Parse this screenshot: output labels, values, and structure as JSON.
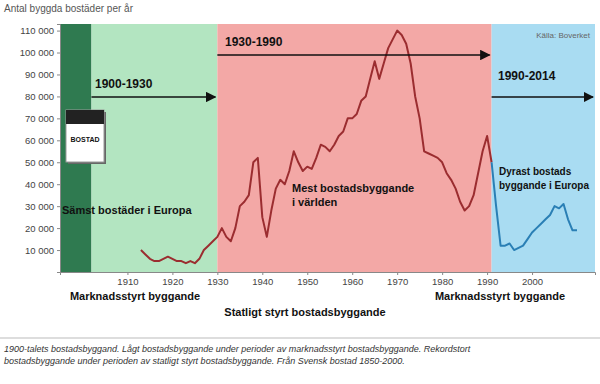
{
  "chart_data": {
    "type": "line",
    "title": "Antal byggda bostäder per år",
    "x": [
      1913,
      1914,
      1915,
      1916,
      1917,
      1918,
      1919,
      1920,
      1921,
      1922,
      1923,
      1924,
      1925,
      1926,
      1927,
      1928,
      1929,
      1930,
      1931,
      1932,
      1933,
      1934,
      1935,
      1936,
      1937,
      1938,
      1939,
      1940,
      1941,
      1942,
      1943,
      1944,
      1945,
      1946,
      1947,
      1948,
      1949,
      1950,
      1951,
      1952,
      1953,
      1954,
      1955,
      1956,
      1957,
      1958,
      1959,
      1960,
      1961,
      1962,
      1963,
      1964,
      1965,
      1966,
      1967,
      1968,
      1969,
      1970,
      1971,
      1972,
      1973,
      1974,
      1975,
      1976,
      1977,
      1978,
      1979,
      1980,
      1981,
      1982,
      1983,
      1984,
      1985,
      1986,
      1987,
      1988,
      1989,
      1990,
      1991,
      1992,
      1993,
      1994,
      1995,
      1996,
      1997,
      1998,
      1999,
      2000,
      2001,
      2002,
      2003,
      2004,
      2005,
      2006,
      2007,
      2008,
      2009,
      2010
    ],
    "series": [
      {
        "color": "#9b2d30",
        "values": [
          10000,
          8000,
          6000,
          5000,
          5000,
          6000,
          7000,
          6000,
          5000,
          5000,
          4000,
          5000,
          4000,
          6000,
          10000,
          12000,
          14000,
          16000,
          20000,
          16000,
          14000,
          20000,
          30000,
          32000,
          35000,
          50000,
          52000,
          25000,
          16000,
          28000,
          38000,
          42000,
          40000,
          46000,
          55000,
          50000,
          46000,
          48000,
          47000,
          52000,
          58000,
          57000,
          55000,
          58000,
          62000,
          64000,
          70000,
          70000,
          72000,
          78000,
          80000,
          88000,
          96000,
          88000,
          95000,
          102000,
          106000,
          110000,
          108000,
          104000,
          95000,
          80000,
          70000,
          55000,
          54000,
          53000,
          52000,
          50000,
          45000,
          42000,
          38000,
          32000,
          28000,
          30000,
          35000,
          45000,
          55000,
          62000,
          50000,
          null,
          null,
          null,
          null,
          null,
          null,
          null,
          null,
          null,
          null,
          null,
          null,
          null,
          null,
          null,
          null,
          null,
          null,
          null
        ]
      },
      {
        "color": "#2a7fb5",
        "values": [
          null,
          null,
          null,
          null,
          null,
          null,
          null,
          null,
          null,
          null,
          null,
          null,
          null,
          null,
          null,
          null,
          null,
          null,
          null,
          null,
          null,
          null,
          null,
          null,
          null,
          null,
          null,
          null,
          null,
          null,
          null,
          null,
          null,
          null,
          null,
          null,
          null,
          null,
          null,
          null,
          null,
          null,
          null,
          null,
          null,
          null,
          null,
          null,
          null,
          null,
          null,
          null,
          null,
          null,
          null,
          null,
          null,
          null,
          null,
          null,
          null,
          null,
          null,
          null,
          null,
          null,
          null,
          null,
          null,
          null,
          null,
          null,
          null,
          null,
          null,
          null,
          null,
          null,
          50000,
          30000,
          12000,
          12000,
          13000,
          10000,
          11000,
          12000,
          15000,
          18000,
          20000,
          22000,
          24000,
          26000,
          30000,
          29000,
          31000,
          24000,
          19000,
          19000
        ]
      }
    ],
    "xlim": [
      1895,
      2014
    ],
    "xticks": [
      1910,
      1920,
      1930,
      1940,
      1950,
      1960,
      1970,
      1980,
      1990,
      2000
    ],
    "ylim": [
      0,
      113000
    ],
    "yticks": [
      {
        "value": 10000,
        "label": "10 000"
      },
      {
        "value": 20000,
        "label": "20 000"
      },
      {
        "value": 30000,
        "label": "30 000"
      },
      {
        "value": 40000,
        "label": "40 000"
      },
      {
        "value": 50000,
        "label": "50 000"
      },
      {
        "value": 60000,
        "label": "60 000"
      },
      {
        "value": 70000,
        "label": "70 000"
      },
      {
        "value": 80000,
        "label": "80 000"
      },
      {
        "value": 90000,
        "label": "90 000"
      },
      {
        "value": 100000,
        "label": "100 000"
      },
      {
        "value": 110000,
        "label": "110 000"
      }
    ],
    "grid": false,
    "periods": [
      {
        "start": 1895,
        "end": 1902,
        "color": "#2f7a50"
      },
      {
        "label": "1900-1930",
        "start": 1902,
        "end": 1930,
        "color": "#b3e5c1"
      },
      {
        "label": "1930-1990",
        "start": 1930,
        "end": 1991,
        "color": "#f3a8a6"
      },
      {
        "label": "1990-2014",
        "start": 1991,
        "end": 2014,
        "color": "#a9dcf2"
      }
    ],
    "annotations": [
      [
        "Sämst bostäder i Europa"
      ],
      [
        "Mest bostadsbyggande",
        "i världen"
      ],
      [
        "Dyrast bostads",
        "byggande i Europa"
      ],
      [
        "Marknadsstyrt byggande"
      ],
      [
        "Statligt styrt bostadsbyggande"
      ],
      [
        "Marknadsstyrt byggande"
      ],
      [
        "Källa: Boverket"
      ],
      [
        "BOSTAD"
      ]
    ],
    "caption": [
      "1900-talets bostadsbyggand. Lågt bostadsbyggande under perioder av marknadsstyrt bostadsbyggande. Rekordstort",
      "bostadsbyggande under perioden av statligt styrt bostadsbyggande. Från Svensk bostad 1850-2000."
    ]
  }
}
